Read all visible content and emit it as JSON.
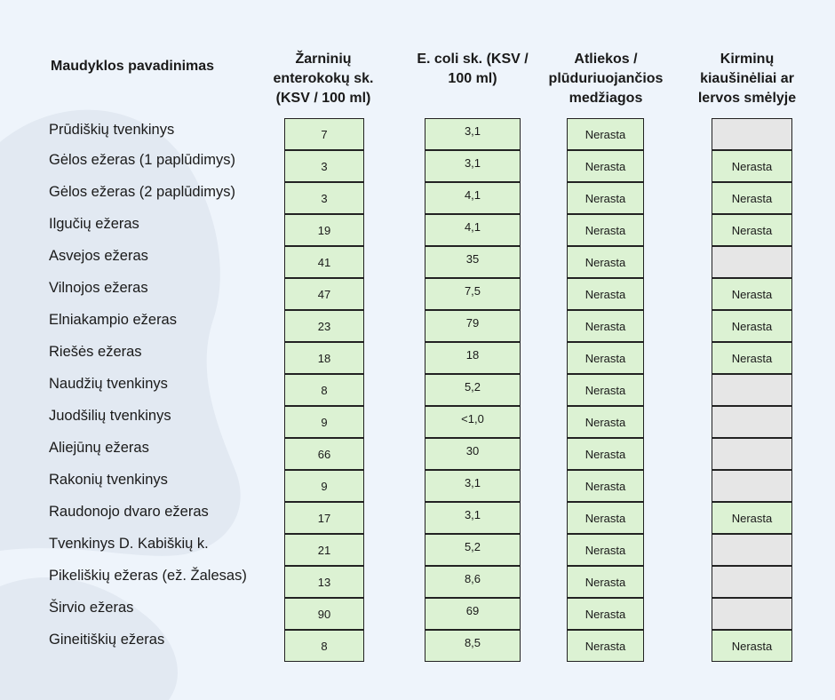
{
  "headers": {
    "name": "Maudyklos pavadinimas",
    "col1": "Žarninių enterokokų sk. (KSV / 100 ml)",
    "col2": "E. coli sk. (KSV / 100 ml)",
    "col3": "Atliekos / plūduriuojančios medžiagos",
    "col4": "Kirminų kiaušinėliai ar lervos smėlyje"
  },
  "rows": [
    {
      "name": "Prūdiškių tvenkinys",
      "enterokokai": "7",
      "ecoli": "3,1",
      "atliekos": "Nerasta",
      "kirminai": ""
    },
    {
      "name": "Gėlos ežeras (1 paplūdimys)",
      "enterokokai": "3",
      "ecoli": "3,1",
      "atliekos": "Nerasta",
      "kirminai": "Nerasta"
    },
    {
      "name": "Gėlos ežeras (2 paplūdimys)",
      "enterokokai": "3",
      "ecoli": "4,1",
      "atliekos": "Nerasta",
      "kirminai": "Nerasta"
    },
    {
      "name": "Ilgučių ežeras",
      "enterokokai": "19",
      "ecoli": "4,1",
      "atliekos": "Nerasta",
      "kirminai": "Nerasta"
    },
    {
      "name": "Asvejos ežeras",
      "enterokokai": "41",
      "ecoli": "35",
      "atliekos": "Nerasta",
      "kirminai": ""
    },
    {
      "name": "Vilnojos ežeras",
      "enterokokai": "47",
      "ecoli": "7,5",
      "atliekos": "Nerasta",
      "kirminai": "Nerasta"
    },
    {
      "name": "Elniakampio ežeras",
      "enterokokai": "23",
      "ecoli": "79",
      "atliekos": "Nerasta",
      "kirminai": "Nerasta"
    },
    {
      "name": "Riešės ežeras",
      "enterokokai": "18",
      "ecoli": "18",
      "atliekos": "Nerasta",
      "kirminai": "Nerasta"
    },
    {
      "name": "Naudžių tvenkinys",
      "enterokokai": "8",
      "ecoli": "5,2",
      "atliekos": "Nerasta",
      "kirminai": ""
    },
    {
      "name": "Juodšilių tvenkinys",
      "enterokokai": "9",
      "ecoli": "<1,0",
      "atliekos": "Nerasta",
      "kirminai": ""
    },
    {
      "name": "Aliejūnų ežeras",
      "enterokokai": "66",
      "ecoli": "30",
      "atliekos": "Nerasta",
      "kirminai": ""
    },
    {
      "name": "Rakonių tvenkinys",
      "enterokokai": "9",
      "ecoli": "3,1",
      "atliekos": "Nerasta",
      "kirminai": ""
    },
    {
      "name": "Raudonojo dvaro ežeras",
      "enterokokai": "17",
      "ecoli": "3,1",
      "atliekos": "Nerasta",
      "kirminai": "Nerasta"
    },
    {
      "name": "Tvenkinys D. Kabiškių k.",
      "enterokokai": "21",
      "ecoli": "5,2",
      "atliekos": "Nerasta",
      "kirminai": ""
    },
    {
      "name": "Pikeliškių ežeras (ež. Žalesas)",
      "enterokokai": "13",
      "ecoli": "8,6",
      "atliekos": "Nerasta",
      "kirminai": ""
    },
    {
      "name": "Širvio ežeras",
      "enterokokai": "90",
      "ecoli": "69",
      "atliekos": "Nerasta",
      "kirminai": ""
    },
    {
      "name": "Gineitiškių ežeras",
      "enterokokai": "8",
      "ecoli": "8,5",
      "atliekos": "Nerasta",
      "kirminai": "Nerasta"
    }
  ],
  "colors": {
    "filled": "#dcf2d3",
    "empty": "#e6e6e6",
    "background": "#eef4fb"
  }
}
